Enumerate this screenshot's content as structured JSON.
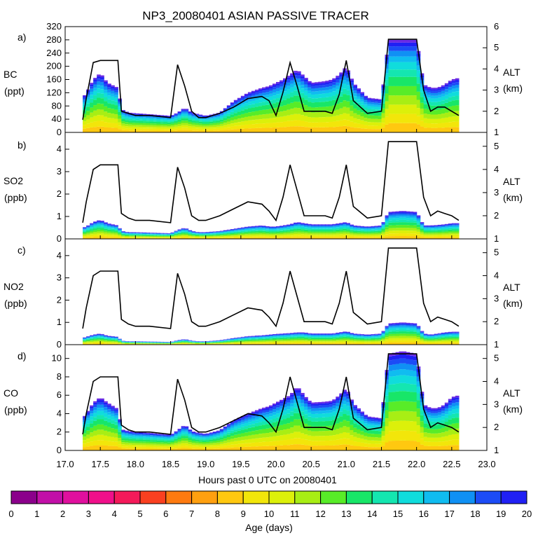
{
  "title": "NP3_20080401 ASIAN PASSIVE TRACER",
  "x_axis": {
    "label": "Hours past 0 UTC on 20080401",
    "range": [
      17.0,
      23.0
    ],
    "ticks": [
      "17.0",
      "17.5",
      "18.0",
      "18.5",
      "19.0",
      "19.5",
      "20.0",
      "20.5",
      "21.0",
      "21.5",
      "22.0",
      "22.5",
      "23.0"
    ]
  },
  "colorbar": {
    "label": "Age (days)",
    "ticks": [
      "0",
      "1",
      "2",
      "3",
      "4",
      "5",
      "6",
      "7",
      "8",
      "9",
      "10",
      "11",
      "12",
      "13",
      "14",
      "15",
      "16",
      "17",
      "18",
      "19",
      "20"
    ],
    "colors": [
      "#8b008b",
      "#c20fa8",
      "#e0109e",
      "#f0108a",
      "#f41a5a",
      "#fa4020",
      "#fe7a10",
      "#ffa010",
      "#ffc810",
      "#f2e60a",
      "#dcf00a",
      "#a8ee14",
      "#58ec28",
      "#18e668",
      "#14e6b0",
      "#10dcdc",
      "#10bcf0",
      "#1090f4",
      "#1c4cf6",
      "#2020f4",
      "#6a2ae4"
    ]
  },
  "panels": [
    {
      "letter": "a)",
      "name": "BC",
      "unit": "(ppt)",
      "alt_label": "ALT",
      "alt_unit": "(km)",
      "yticks": [
        "0",
        "40",
        "80",
        "120",
        "160",
        "200",
        "240",
        "280",
        "320"
      ],
      "altticks": [
        "1",
        "2",
        "3",
        "4",
        "5",
        "6"
      ]
    },
    {
      "letter": "b)",
      "name": "SO2",
      "unit": "(ppb)",
      "alt_label": "ALT",
      "alt_unit": "(km)",
      "yticks": [
        "0",
        "1",
        "2",
        "3",
        "4"
      ],
      "altticks": [
        "1",
        "2",
        "3",
        "4",
        "5"
      ]
    },
    {
      "letter": "c)",
      "name": "NO2",
      "unit": "(ppb)",
      "alt_label": "ALT",
      "alt_unit": "(km)",
      "yticks": [
        "0",
        "1",
        "2",
        "3",
        "4"
      ],
      "altticks": [
        "1",
        "2",
        "3",
        "4",
        "5"
      ]
    },
    {
      "letter": "d)",
      "name": "CO",
      "unit": "(ppb)",
      "alt_label": "ALT",
      "alt_unit": "(km)",
      "yticks": [
        "0",
        "2",
        "4",
        "6",
        "8",
        "10"
      ],
      "altticks": [
        "1",
        "2",
        "3",
        "4",
        "5"
      ]
    }
  ],
  "chart_data": [
    {
      "type": "area",
      "title": "BC",
      "xlabel": "Hours past 0 UTC on 20080401",
      "ylabel": "BC (ppt)",
      "y2label": "ALT (km)",
      "ylim": [
        0,
        320
      ],
      "y2lim": [
        1,
        6
      ],
      "x": [
        17.25,
        17.3,
        17.4,
        17.5,
        17.6,
        17.75,
        17.8,
        17.9,
        18.0,
        18.2,
        18.5,
        18.6,
        18.7,
        18.8,
        18.9,
        19.0,
        19.2,
        19.4,
        19.6,
        19.8,
        19.9,
        20.0,
        20.1,
        20.2,
        20.3,
        20.4,
        20.5,
        20.7,
        20.8,
        20.9,
        21.0,
        21.1,
        21.3,
        21.5,
        21.6,
        21.8,
        22.0,
        22.1,
        22.2,
        22.3,
        22.4,
        22.5,
        22.6
      ],
      "tracer_total": [
        105,
        120,
        160,
        180,
        150,
        135,
        70,
        60,
        58,
        55,
        50,
        60,
        75,
        60,
        55,
        50,
        60,
        95,
        120,
        135,
        140,
        150,
        160,
        175,
        190,
        170,
        150,
        155,
        160,
        175,
        200,
        150,
        105,
        100,
        280,
        280,
        280,
        145,
        135,
        135,
        145,
        160,
        165
      ],
      "altitude_km": [
        1.6,
        2.6,
        4.3,
        4.4,
        4.4,
        4.4,
        2.0,
        1.9,
        1.8,
        1.8,
        1.7,
        4.2,
        3.2,
        2.0,
        1.7,
        1.7,
        1.9,
        2.2,
        2.6,
        2.7,
        2.5,
        1.8,
        2.9,
        4.3,
        3.2,
        2.0,
        2.0,
        2.0,
        1.9,
        2.8,
        4.4,
        2.5,
        1.9,
        2.0,
        5.4,
        5.4,
        5.4,
        3.0,
        2.0,
        2.2,
        2.2,
        2.0,
        1.8
      ]
    },
    {
      "type": "area",
      "title": "SO2",
      "xlabel": "Hours past 0 UTC on 20080401",
      "ylabel": "SO2 (ppb)",
      "y2label": "ALT (km)",
      "ylim": [
        0,
        4.75
      ],
      "y2lim": [
        1,
        5.6
      ],
      "x": [
        17.25,
        17.3,
        17.4,
        17.5,
        17.6,
        17.75,
        17.8,
        17.9,
        18.0,
        18.2,
        18.5,
        18.6,
        18.7,
        18.8,
        18.9,
        19.0,
        19.2,
        19.4,
        19.6,
        19.8,
        19.9,
        20.0,
        20.1,
        20.2,
        20.3,
        20.4,
        20.5,
        20.7,
        20.8,
        20.9,
        21.0,
        21.1,
        21.3,
        21.5,
        21.6,
        21.8,
        22.0,
        22.1,
        22.2,
        22.3,
        22.4,
        22.5,
        22.6
      ],
      "tracer_total": [
        0.5,
        0.55,
        0.75,
        0.85,
        0.7,
        0.6,
        0.35,
        0.3,
        0.3,
        0.28,
        0.25,
        0.4,
        0.5,
        0.35,
        0.3,
        0.3,
        0.35,
        0.45,
        0.55,
        0.6,
        0.55,
        0.55,
        0.6,
        0.65,
        0.75,
        0.7,
        0.65,
        0.65,
        0.65,
        0.7,
        0.75,
        0.6,
        0.55,
        0.6,
        1.2,
        1.25,
        1.2,
        0.6,
        0.6,
        0.62,
        0.65,
        0.7,
        0.7
      ],
      "altitude_km": [
        1.7,
        2.6,
        4.0,
        4.2,
        4.2,
        4.2,
        2.1,
        1.9,
        1.8,
        1.8,
        1.7,
        4.1,
        3.2,
        2.0,
        1.8,
        1.8,
        2.0,
        2.3,
        2.6,
        2.5,
        2.2,
        1.8,
        2.8,
        4.2,
        3.1,
        2.0,
        2.0,
        2.0,
        1.9,
        2.8,
        4.2,
        2.4,
        1.9,
        2.0,
        5.2,
        5.2,
        5.2,
        2.8,
        2.0,
        2.2,
        2.1,
        2.0,
        1.8
      ]
    },
    {
      "type": "area",
      "title": "NO2",
      "xlabel": "Hours past 0 UTC on 20080401",
      "ylabel": "NO2 (ppb)",
      "y2label": "ALT (km)",
      "ylim": [
        0,
        4.75
      ],
      "y2lim": [
        1,
        5.6
      ],
      "x": [
        17.25,
        17.3,
        17.4,
        17.5,
        17.6,
        17.75,
        17.8,
        17.9,
        18.0,
        18.2,
        18.5,
        18.6,
        18.7,
        18.8,
        18.9,
        19.0,
        19.2,
        19.4,
        19.6,
        19.8,
        19.9,
        20.0,
        20.1,
        20.2,
        20.3,
        20.4,
        20.5,
        20.7,
        20.8,
        20.9,
        21.0,
        21.1,
        21.3,
        21.5,
        21.6,
        21.8,
        22.0,
        22.1,
        22.2,
        22.3,
        22.4,
        22.5,
        22.6
      ],
      "tracer_total": [
        0.3,
        0.35,
        0.45,
        0.5,
        0.4,
        0.35,
        0.18,
        0.15,
        0.15,
        0.14,
        0.12,
        0.2,
        0.25,
        0.18,
        0.15,
        0.15,
        0.2,
        0.3,
        0.38,
        0.42,
        0.45,
        0.48,
        0.5,
        0.52,
        0.55,
        0.55,
        0.5,
        0.5,
        0.5,
        0.55,
        0.6,
        0.5,
        0.45,
        0.5,
        0.95,
        1.0,
        0.95,
        0.5,
        0.45,
        0.5,
        0.55,
        0.58,
        0.58
      ],
      "altitude_km": [
        1.7,
        2.6,
        4.0,
        4.2,
        4.2,
        4.2,
        2.1,
        1.9,
        1.8,
        1.8,
        1.7,
        4.1,
        3.2,
        2.0,
        1.8,
        1.8,
        2.0,
        2.3,
        2.6,
        2.5,
        2.2,
        1.8,
        2.8,
        4.2,
        3.1,
        2.0,
        2.0,
        2.0,
        1.9,
        2.8,
        4.2,
        2.4,
        1.9,
        2.0,
        5.2,
        5.2,
        5.2,
        2.8,
        2.0,
        2.2,
        2.1,
        2.0,
        1.8
      ]
    },
    {
      "type": "area",
      "title": "CO",
      "xlabel": "Hours past 0 UTC on 20080401",
      "ylabel": "CO (ppb)",
      "y2label": "ALT (km)",
      "ylim": [
        0,
        11.5
      ],
      "y2lim": [
        1,
        5.6
      ],
      "x": [
        17.25,
        17.3,
        17.4,
        17.5,
        17.6,
        17.75,
        17.8,
        17.9,
        18.0,
        18.2,
        18.5,
        18.6,
        18.7,
        18.8,
        18.9,
        19.0,
        19.2,
        19.4,
        19.6,
        19.8,
        19.9,
        20.0,
        20.1,
        20.2,
        20.3,
        20.4,
        20.5,
        20.7,
        20.8,
        20.9,
        21.0,
        21.1,
        21.3,
        21.5,
        21.6,
        21.8,
        22.0,
        22.1,
        22.2,
        22.3,
        22.4,
        22.5,
        22.6
      ],
      "tracer_total": [
        3.5,
        4.0,
        5.2,
        5.8,
        5.2,
        4.5,
        2.3,
        2.1,
        2.0,
        1.9,
        1.7,
        2.2,
        2.8,
        2.1,
        1.9,
        1.8,
        2.2,
        3.3,
        4.0,
        4.6,
        4.8,
        5.2,
        5.6,
        6.0,
        7.0,
        6.0,
        5.2,
        5.3,
        5.4,
        6.0,
        6.8,
        5.1,
        3.7,
        3.5,
        10.5,
        10.8,
        10.5,
        5.0,
        4.6,
        4.6,
        5.0,
        5.8,
        6.0
      ],
      "altitude_km": [
        1.7,
        2.6,
        4.0,
        4.2,
        4.2,
        4.2,
        2.1,
        1.9,
        1.8,
        1.8,
        1.7,
        4.1,
        3.2,
        2.0,
        1.8,
        1.8,
        2.0,
        2.3,
        2.6,
        2.5,
        2.2,
        1.8,
        2.8,
        4.2,
        3.1,
        2.0,
        2.0,
        2.0,
        1.9,
        2.8,
        4.2,
        2.4,
        1.9,
        2.0,
        5.2,
        5.2,
        5.2,
        2.8,
        2.0,
        2.2,
        2.1,
        2.0,
        1.8
      ]
    }
  ]
}
